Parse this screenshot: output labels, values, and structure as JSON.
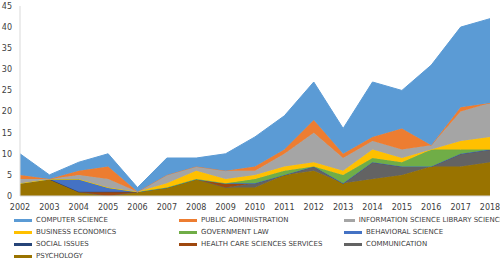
{
  "chart_data": {
    "type": "area",
    "stacked": true,
    "grid": false,
    "legend": "bottom",
    "categories": [
      "2002",
      "2003",
      "2004",
      "2005",
      "2006",
      "2007",
      "2008",
      "2009",
      "2010",
      "2011",
      "2012",
      "2013",
      "2014",
      "2015",
      "2016",
      "2017",
      "2018"
    ],
    "ylim": [
      0,
      45
    ],
    "yticks": [
      0,
      5,
      10,
      15,
      20,
      25,
      30,
      35,
      40,
      45
    ],
    "series": [
      {
        "name": "COMPUTER SCIENCE",
        "color": "#5b9bd5",
        "values": [
          5,
          1,
          2,
          3,
          1,
          4,
          2,
          4,
          7,
          8,
          9,
          6,
          13,
          9,
          19,
          19,
          20
        ]
      },
      {
        "name": "PUBLIC ADMINISTRATION",
        "color": "#ed7d31",
        "values": [
          1,
          0,
          1,
          3,
          0,
          0,
          0,
          0,
          1,
          1,
          3,
          1,
          1,
          5,
          0,
          1,
          0
        ]
      },
      {
        "name": "INFORMATION SCIENCE LIBRARY SCIENCE",
        "color": "#a5a5a5",
        "values": [
          1,
          0,
          1,
          2,
          0,
          2,
          1,
          2,
          1,
          3,
          7,
          3,
          2,
          2,
          1,
          7,
          8
        ]
      },
      {
        "name": "BUSINESS ECONOMICS",
        "color": "#ffc000",
        "values": [
          0,
          0,
          0,
          0,
          0,
          1,
          2,
          1,
          1,
          1,
          1,
          1,
          2,
          1,
          0,
          2,
          3
        ]
      },
      {
        "name": "GOVERNMENT LAW",
        "color": "#70ad47",
        "values": [
          0,
          0,
          0,
          0,
          0,
          0,
          0,
          0,
          1,
          1,
          0,
          2,
          1,
          1,
          4,
          1,
          0
        ]
      },
      {
        "name": "BEHAVIORAL SCIENCE",
        "color": "#4472c4",
        "values": [
          0,
          0,
          3,
          1,
          0,
          0,
          0,
          0,
          0,
          0,
          0,
          0,
          0,
          0,
          0,
          0,
          0
        ]
      },
      {
        "name": "SOCIAL ISSUES",
        "color": "#264478",
        "values": [
          0,
          0,
          0,
          0,
          0,
          0,
          0,
          0,
          0,
          0,
          0,
          0,
          0,
          0,
          0,
          0,
          0
        ]
      },
      {
        "name": "HEALTH CARE SCIENCES SERVICES",
        "color": "#9e480e",
        "values": [
          0,
          0,
          0,
          1,
          0,
          0,
          0,
          1,
          0,
          0,
          0,
          0,
          0,
          0,
          0,
          0,
          0
        ]
      },
      {
        "name": "COMMUNICATION",
        "color": "#636363",
        "values": [
          0,
          0,
          0,
          0,
          0,
          0,
          0,
          0,
          1,
          0,
          1,
          0,
          4,
          2,
          0,
          3,
          3
        ]
      },
      {
        "name": "PSYCHOLOGY",
        "color": "#997300",
        "values": [
          3,
          4,
          1,
          0,
          1,
          2,
          4,
          2,
          2,
          5,
          6,
          3,
          4,
          5,
          7,
          7,
          8
        ]
      }
    ]
  }
}
